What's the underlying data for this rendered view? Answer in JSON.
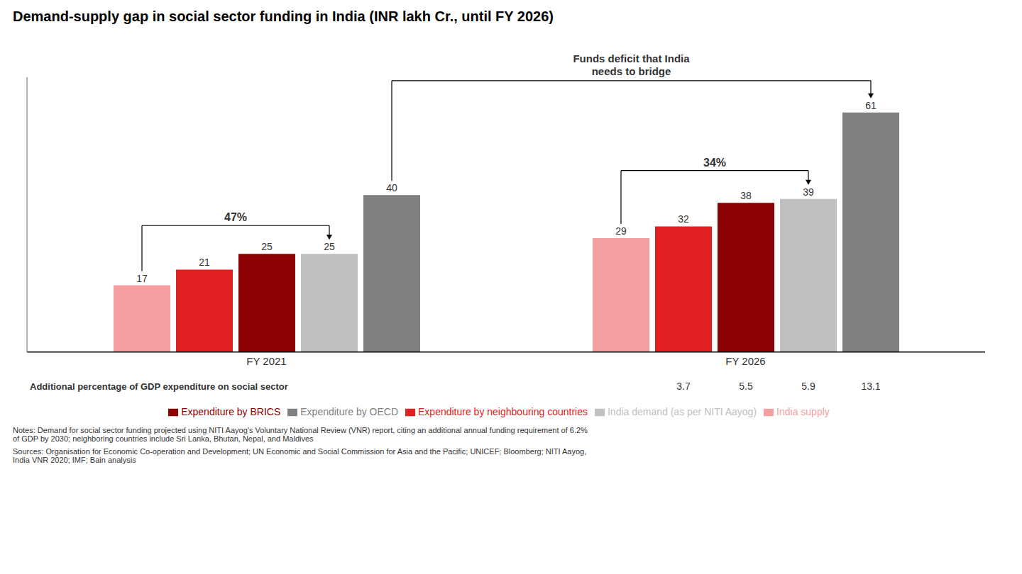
{
  "chart_data": {
    "type": "bar",
    "title": "Demand-supply gap in social sector funding in India (INR lakh Cr., until FY 2026)",
    "categories": [
      "FY 2021",
      "FY 2026"
    ],
    "series": [
      {
        "name": "India supply",
        "color": "#F4A0A0",
        "values": [
          17,
          29
        ]
      },
      {
        "name": "Expenditure by neighbouring countries",
        "color": "#E02020",
        "values": [
          21,
          32
        ]
      },
      {
        "name": "Expenditure by BRICS",
        "color": "#8B0000",
        "values": [
          25,
          38
        ]
      },
      {
        "name": "India demand (as per NITI Aayog)",
        "color": "#C0C0C0",
        "values": [
          25,
          39
        ]
      },
      {
        "name": "Expenditure by OECD",
        "color": "#808080",
        "values": [
          40,
          61
        ]
      }
    ],
    "ylim": [
      0,
      70
    ],
    "data_labels": true,
    "tick_labels": "x",
    "legend": "bottom",
    "annotations": [
      {
        "text": "47%",
        "category": "FY 2021",
        "from_series": "India supply",
        "to_series": "India demand (as per NITI Aayog)"
      },
      {
        "text": "34%",
        "category": "FY 2026",
        "from_series": "India supply",
        "to_series": "India demand (as per NITI Aayog)"
      },
      {
        "text": "Funds deficit that India\nneeds to bridge",
        "series": "Expenditure by OECD",
        "from_category": "FY 2021",
        "to_category": "FY 2026"
      }
    ],
    "gdp_row": {
      "label": "Additional percentage of GDP expenditure on social sector",
      "category": "FY 2026",
      "values": [
        null,
        3.7,
        5.5,
        5.9,
        13.1
      ]
    },
    "notes": "Notes: Demand for social sector funding projected using NITI Aayog's Voluntary National Review (VNR) report, citing an additional annual funding requirement of 6.2%\nof GDP by 2030; neighboring countries include Sri Lanka, Bhutan, Nepal, and Maldives",
    "sources": "Sources: Organisation for Economic Co-operation and Development; UN Economic and Social Commission for Asia and the Pacific; UNICEF; Bloomberg; NITI Aayog,\nIndia VNR 2020; IMF; Bain analysis"
  }
}
